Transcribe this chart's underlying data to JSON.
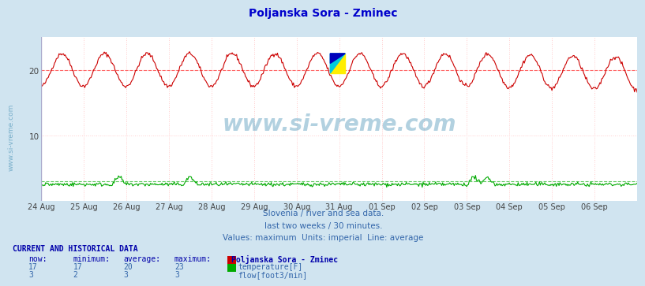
{
  "title": "Poljanska Sora - Zminec",
  "title_color": "#0000cc",
  "bg_color": "#d0e4f0",
  "plot_bg_color": "#ffffff",
  "grid_color": "#ffcccc",
  "x_labels": [
    "24 Aug",
    "25 Aug",
    "26 Aug",
    "27 Aug",
    "28 Aug",
    "29 Aug",
    "30 Aug",
    "31 Aug",
    "01 Sep",
    "02 Sep",
    "03 Sep",
    "04 Sep",
    "05 Sep",
    "06 Sep"
  ],
  "y_ticks": [
    10,
    20
  ],
  "ylim": [
    0,
    25
  ],
  "temp_avg": 20,
  "temp_min": 17,
  "temp_max": 23,
  "temp_now": 17,
  "flow_avg": 3,
  "flow_min": 2,
  "flow_max": 3,
  "flow_now": 3,
  "temp_color": "#cc0000",
  "flow_color": "#00aa00",
  "avg_line_color_temp": "#ff6666",
  "avg_line_color_flow": "#66cc66",
  "watermark_color": "#5599bb",
  "watermark_text": "www.si-vreme.com",
  "subtitle1": "Slovenia / river and sea data.",
  "subtitle2": "last two weeks / 30 minutes.",
  "subtitle3": "Values: maximum  Units: imperial  Line: average",
  "subtitle_color": "#3366aa",
  "table_header_color": "#0000aa",
  "table_data_color": "#3366aa",
  "n_points": 672
}
